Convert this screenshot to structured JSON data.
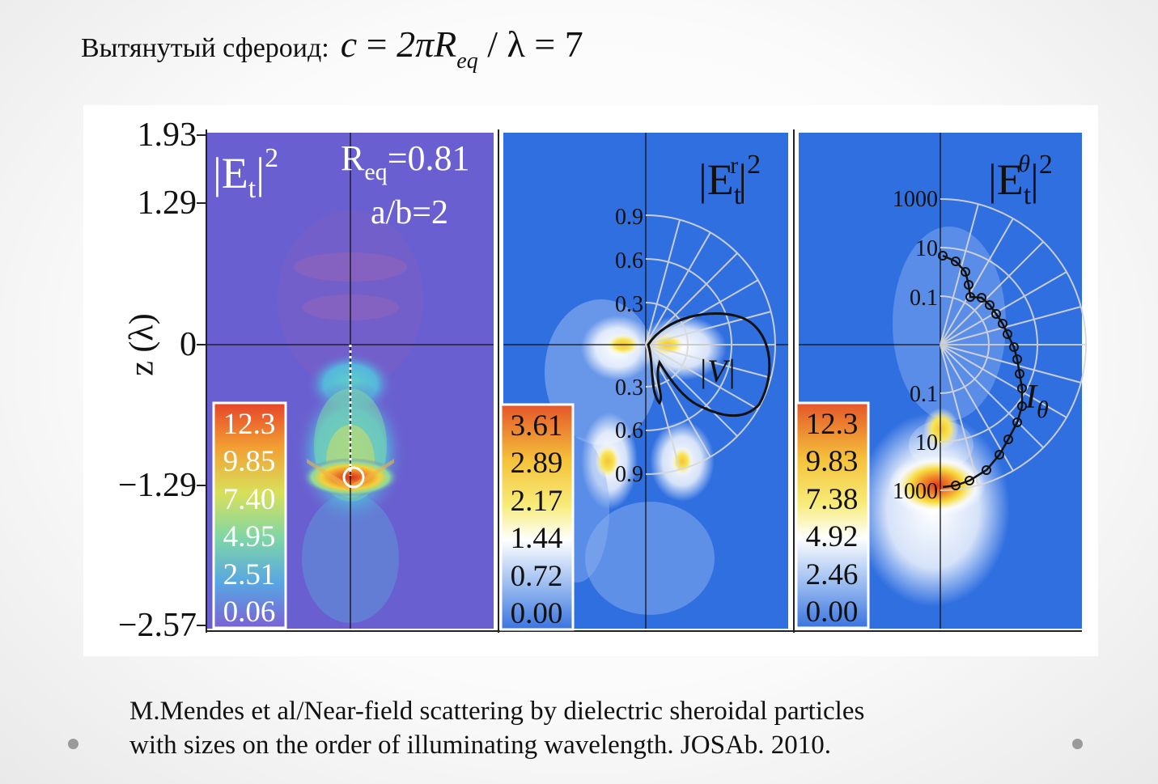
{
  "slide": {
    "title_text": "Вытянутый сфероид:",
    "formula": {
      "lhs": "c",
      "eq1": "=",
      "mid": "2πR",
      "sub": "eq",
      "div": "/ λ",
      "eq2": "=",
      "rhs": "7"
    },
    "caption_line1": "M.Mendes et al/Near-field scattering by dielectric sheroidal particles",
    "caption_line2": "with sizes on the order of illuminating wavelength. JOSAb. 2010."
  },
  "figure": {
    "ylabel": "z (λ)",
    "yticks": [
      "1.93",
      "1.29",
      "0",
      "−1.29",
      "−2.57"
    ],
    "panel1": {
      "label": "|E",
      "label_sub": "t",
      "label_sup": "2",
      "param1": "R",
      "param1_sub": "eq",
      "param1_value": "=0.81",
      "param2": "a/b=2",
      "legend": [
        "12.3",
        "9.85",
        "7.40",
        "4.95",
        "2.51",
        "0.06"
      ]
    },
    "panel2": {
      "label": "|E",
      "label_sub": "t",
      "label_sup_inner": "r",
      "label_sup": "2",
      "polar_label": "|V|",
      "radial_ticks": [
        "0.9",
        "0.6",
        "0.3",
        "0.3",
        "0.6",
        "0.9"
      ],
      "legend": [
        "3.61",
        "2.89",
        "2.17",
        "1.44",
        "0.72",
        "0.00"
      ]
    },
    "panel3": {
      "label": "|E",
      "label_sub": "t",
      "label_sup_inner": "θ",
      "label_sup": "2",
      "polar_label": "I",
      "polar_label_sub": "θ",
      "radial_ticks": [
        "1000",
        "10",
        "0.1",
        "0.1",
        "10",
        "1000"
      ],
      "legend": [
        "12.3",
        "9.83",
        "7.38",
        "4.92",
        "2.46",
        "0.00"
      ]
    },
    "colors": {
      "panel1_bg": "#6a5fd0",
      "panel_blue": "#2f6fe0",
      "hot": "#e8381f",
      "yellow": "#f7e23a"
    }
  }
}
